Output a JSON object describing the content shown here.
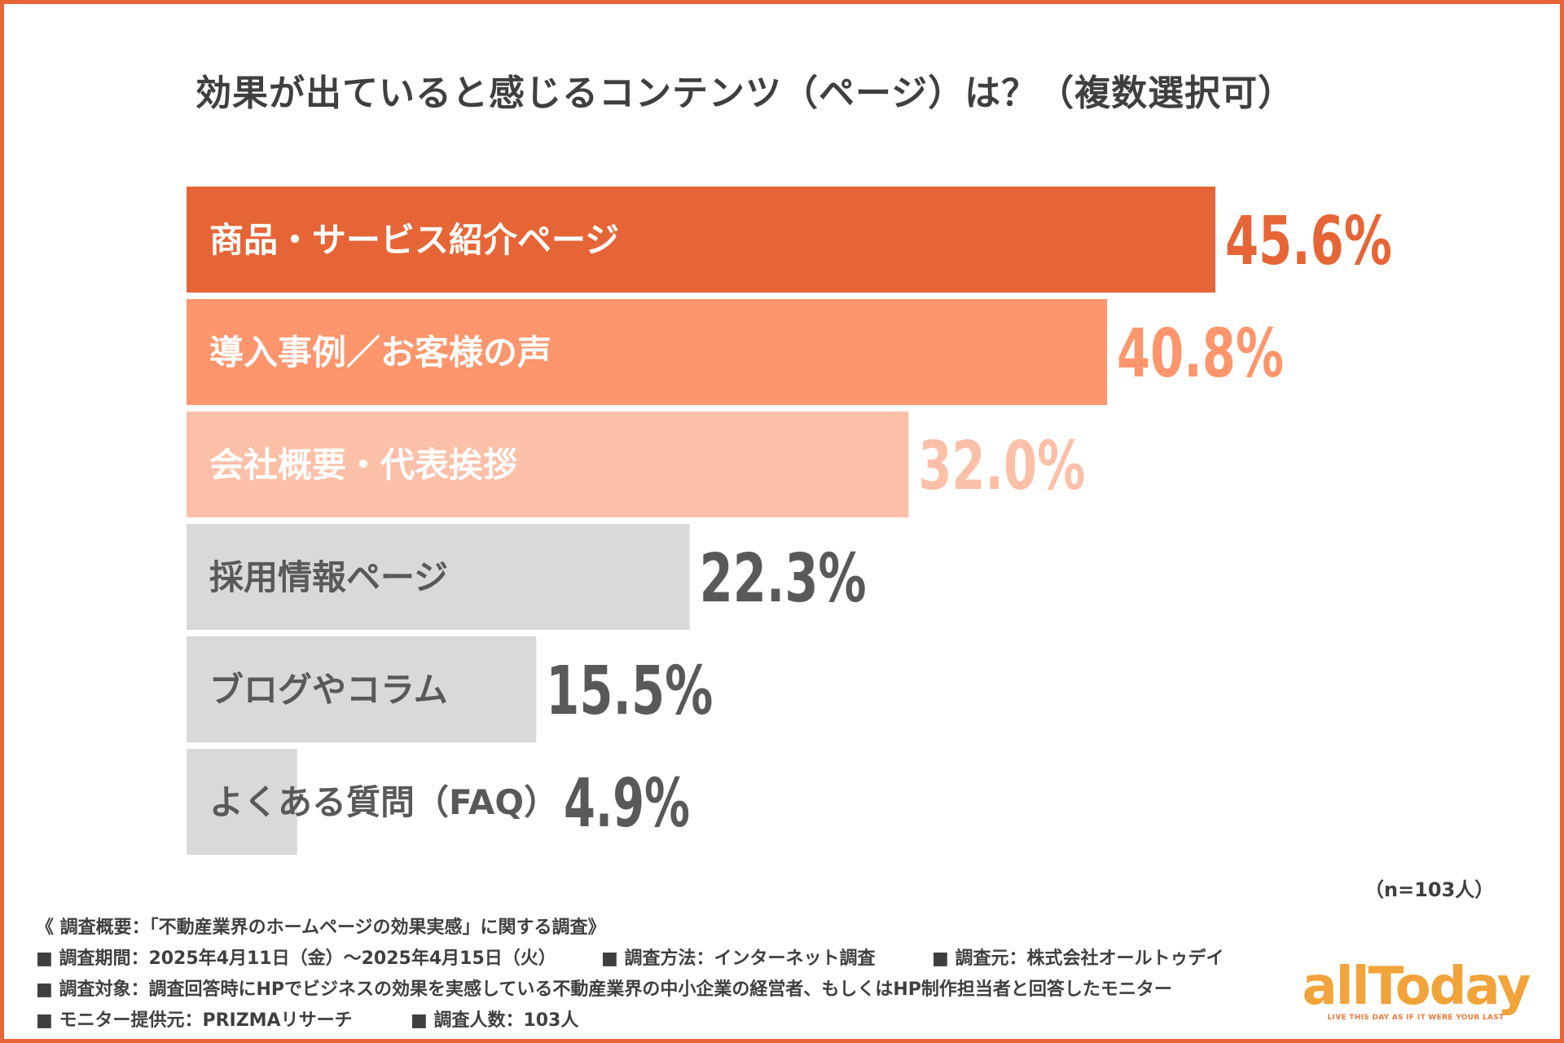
{
  "chart_data": {
    "type": "bar",
    "orientation": "horizontal",
    "title": "効果が出ていると感じるコンテンツ（ページ）は？（複数選択可）",
    "categories": [
      "商品・サービス紹介ページ",
      "導入事例／お客様の声",
      "会社概要・代表挨拶",
      "採用情報ページ",
      "ブログやコラム",
      "よくある質問（FAQ）"
    ],
    "values": [
      45.6,
      40.8,
      32.0,
      22.3,
      15.5,
      4.9
    ],
    "value_labels": [
      "45.6%",
      "40.8%",
      "32.0%",
      "22.3%",
      "15.5%",
      "4.9%"
    ],
    "bar_colors": [
      "#e66537",
      "#fd966c",
      "#fcbfa7",
      "#d9d9d9",
      "#d9d9d9",
      "#d9d9d9"
    ],
    "value_colors": [
      "#e66537",
      "#fd966c",
      "#fcbfa7",
      "#595959",
      "#595959",
      "#595959"
    ],
    "label_colors": [
      "#ffffff",
      "#ffffff",
      "#ffffff",
      "#595959",
      "#595959",
      "#595959"
    ],
    "xlim": [
      0,
      50
    ],
    "unit": "%",
    "sample_size": "（n=103人）"
  },
  "notes": {
    "summary": "《 調査概要：「不動産業界のホームページの効果実感」に関する調査》",
    "period": "■ 調査期間：2025年4月11日（金）〜2025年4月15日（火）",
    "method": "■ 調査方法：インターネット調査",
    "organizer": "■ 調査元：株式会社オールトゥデイ",
    "target": "■ 調査対象：調査回答時にHPでビジネスの効果を実感している不動産業界の中小企業の経営者、もしくはHP制作担当者と回答したモニター",
    "provider": "■ モニター提供元：PRIZMAリサーチ",
    "respondents": "■ 調査人数：103人"
  },
  "logo": {
    "word": "allToday",
    "tagline": "LIVE THIS DAY AS IF IT WERE YOUR LAST",
    "color": "#f2a33a",
    "accent": "#f07a3a"
  },
  "frame_color": "#e66537"
}
